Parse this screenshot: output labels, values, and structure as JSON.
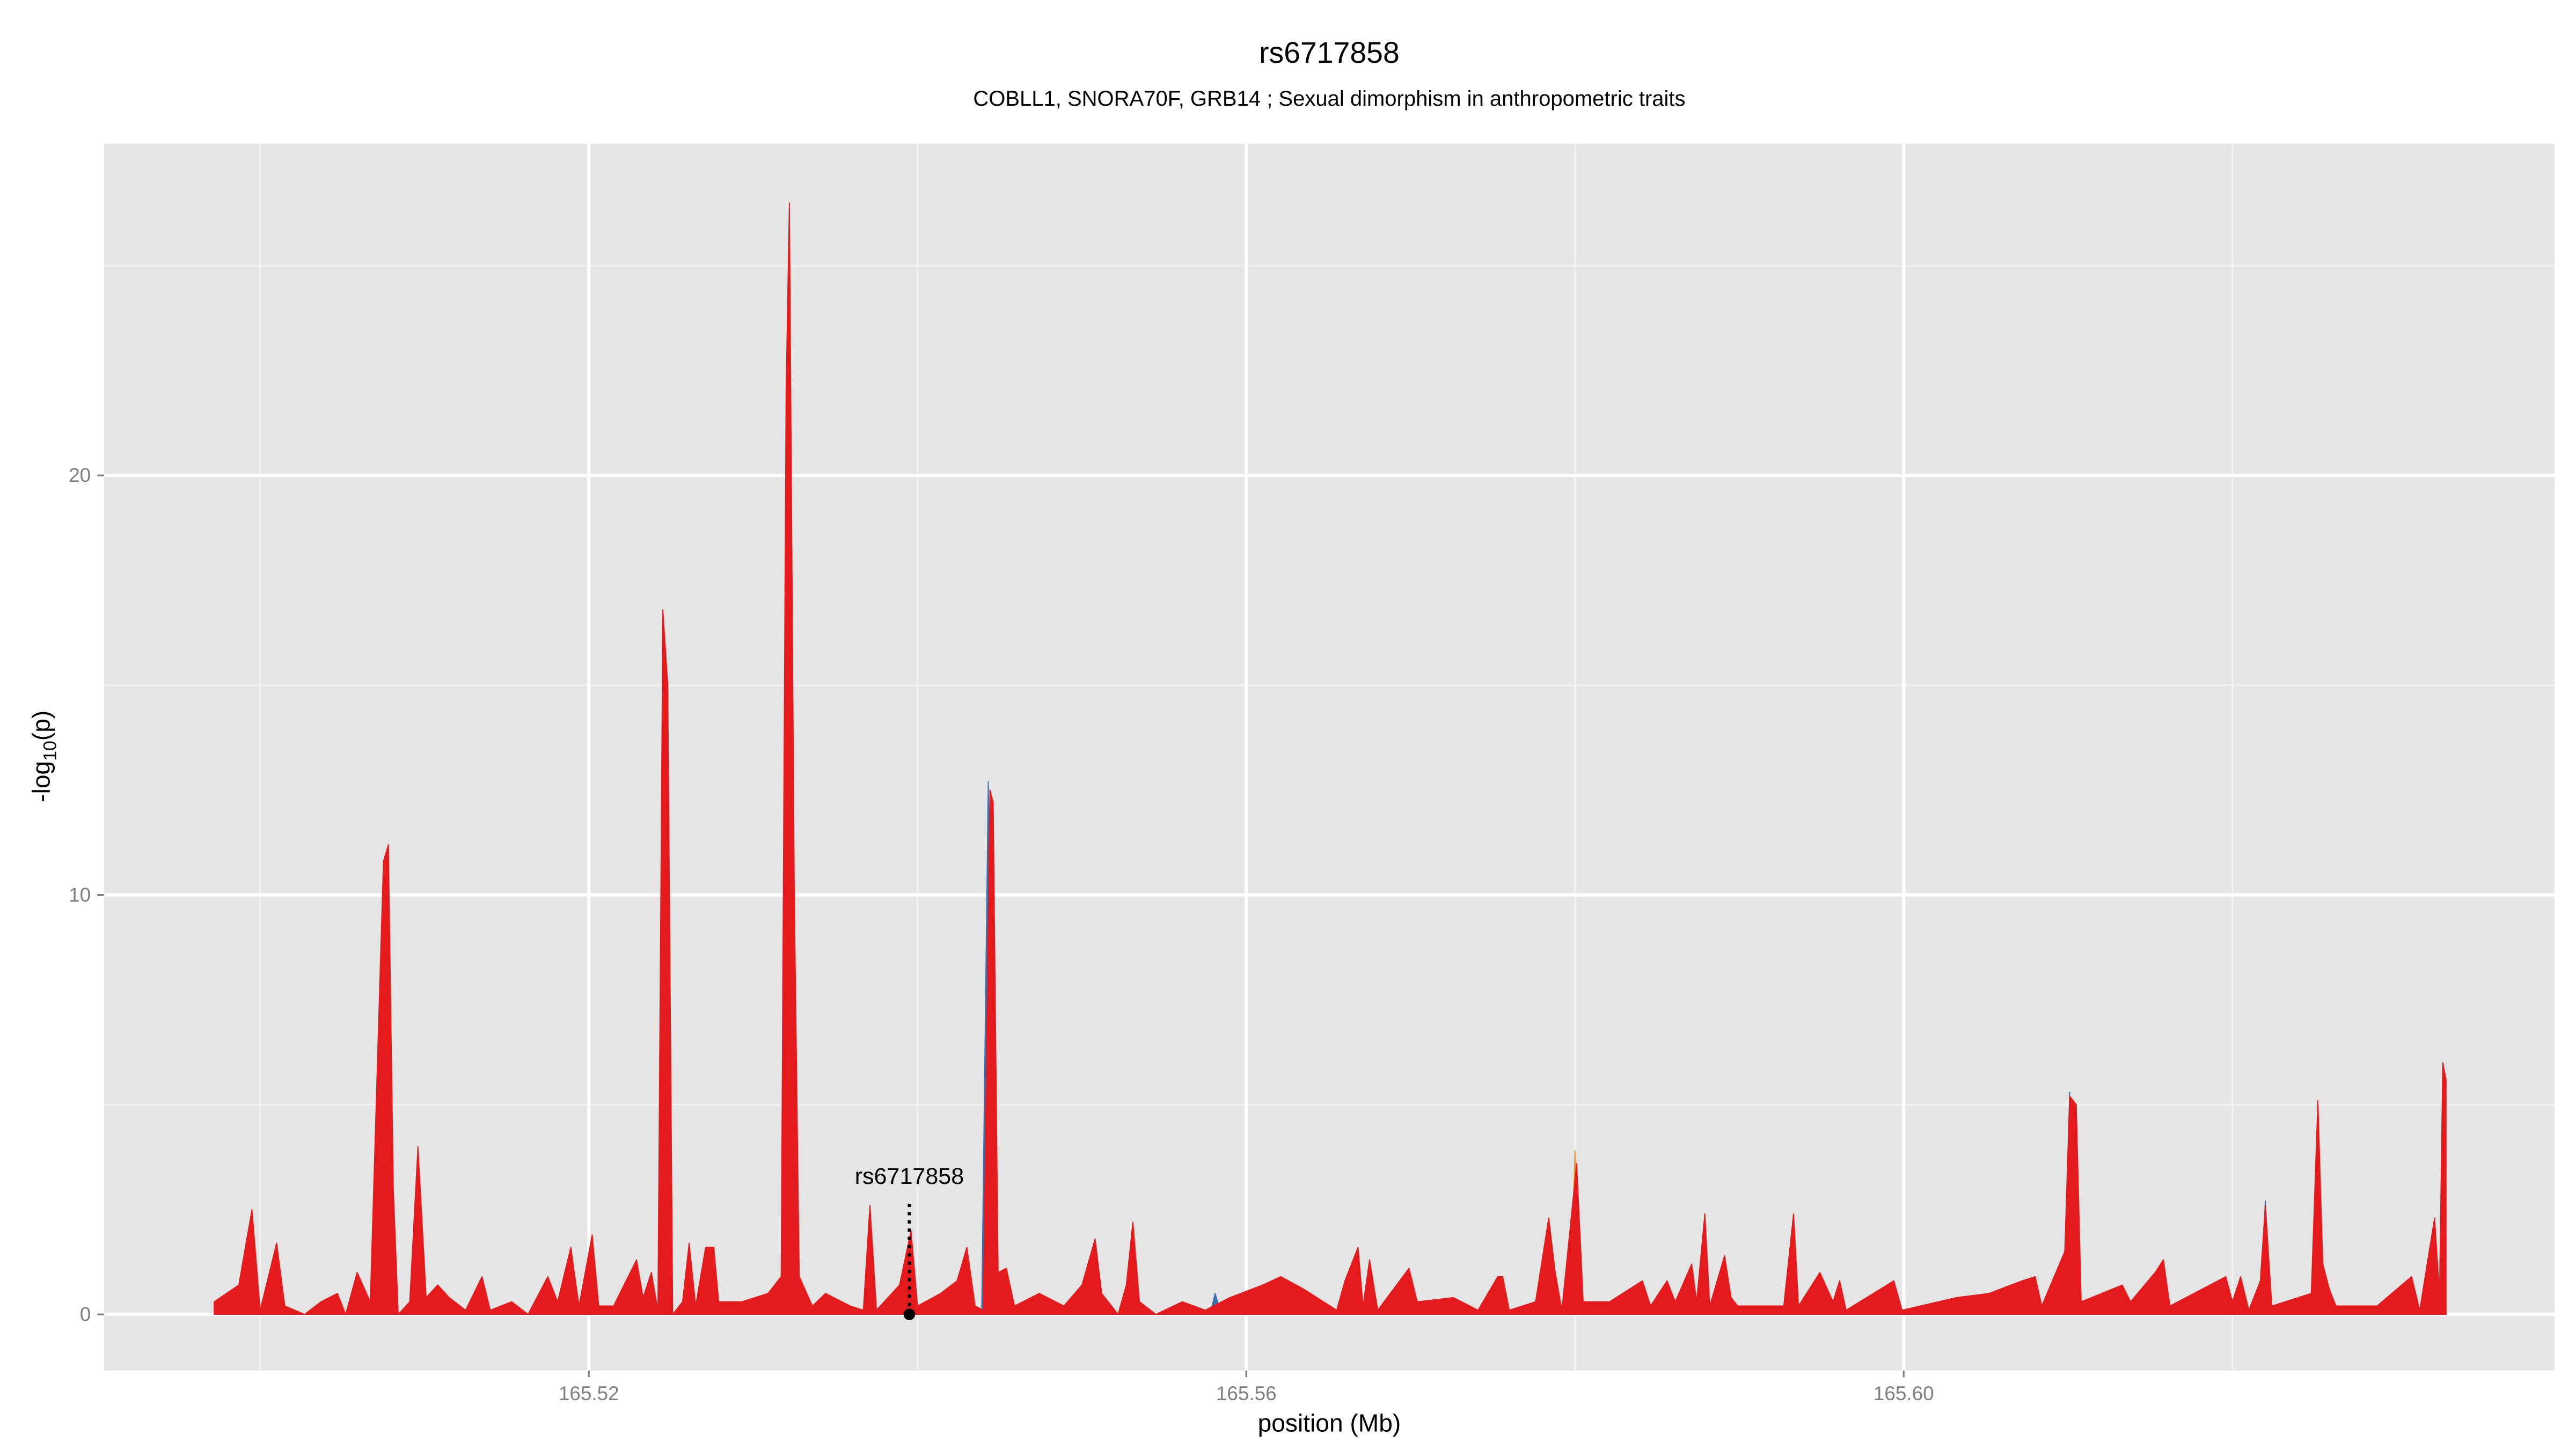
{
  "chart_data": {
    "type": "area",
    "title": "rs6717858",
    "subtitle": "COBLL1, SNORA70F, GRB14 ; Sexual dimorphism in anthropometric traits",
    "xlabel": "position (Mb)",
    "ylabel": [
      "-log",
      "10",
      "(p)"
    ],
    "xlim": [
      165.4905,
      165.6396
    ],
    "ylim": [
      -1.34,
      27.91
    ],
    "xticks": [
      165.52,
      165.56,
      {
        "value": 165.6,
        "label": "165.60"
      }
    ],
    "yticks": [
      0,
      10,
      20
    ],
    "xminor": [
      165.5,
      165.54,
      165.58,
      165.62
    ],
    "yminor": [
      5,
      15,
      25
    ],
    "grid": true,
    "background": "#e5e5e5",
    "series": [
      {
        "color": "#3a6fb0",
        "x": [
          165.5439,
          165.5443,
          165.5448,
          null,
          165.5578,
          165.5581,
          165.5585,
          null,
          165.6097,
          165.6101,
          165.6106,
          null,
          165.6217,
          165.622,
          165.6224
        ],
        "values": [
          0,
          12.7,
          0,
          null,
          0,
          0.5,
          0,
          null,
          0,
          5.3,
          0,
          null,
          0,
          2.7,
          0
        ]
      },
      {
        "color": "#f6921e",
        "x": [
          165.5797,
          165.58,
          165.5804,
          null,
          165.5316,
          165.532,
          165.5324
        ],
        "values": [
          0,
          3.9,
          0,
          null,
          0,
          1.0,
          0
        ]
      },
      {
        "color": "#e41a1c",
        "x": [
          165.4972,
          165.4987,
          165.4995,
          165.5,
          165.501,
          165.5015,
          165.5027,
          165.5037,
          165.5047,
          165.5052,
          165.5059,
          165.5067,
          165.5075,
          165.5078,
          165.5081,
          165.5084,
          165.5091,
          165.5096,
          165.5101,
          165.5108,
          165.5115,
          165.5125,
          165.5135,
          165.514,
          165.5153,
          165.5163,
          165.5175,
          165.5181,
          165.5189,
          165.5194,
          165.5202,
          165.5206,
          165.5215,
          165.5229,
          165.5233,
          165.5238,
          165.5242,
          165.5245,
          165.5248,
          165.5251,
          165.5257,
          165.5261,
          165.5265,
          165.5271,
          165.5276,
          165.5279,
          165.5293,
          165.5309,
          165.5317,
          165.532,
          165.5322,
          165.5325,
          165.5328,
          165.5336,
          165.5344,
          165.5359,
          165.5367,
          165.5371,
          165.5375,
          165.5389,
          165.5396,
          165.54,
          165.5414,
          165.5424,
          165.543,
          165.5435,
          165.544,
          165.5444,
          165.5446,
          165.5449,
          165.5454,
          165.5459,
          165.5474,
          165.5489,
          165.55,
          165.5508,
          165.5512,
          165.5522,
          165.5527,
          165.5531,
          165.5535,
          165.5545,
          165.5561,
          165.5575,
          165.559,
          165.561,
          165.5621,
          165.5635,
          165.5655,
          165.566,
          165.5668,
          165.5671,
          165.5675,
          165.568,
          165.5699,
          165.5704,
          165.5726,
          165.5741,
          165.5753,
          165.5756,
          165.576,
          165.5776,
          165.5784,
          165.5788,
          165.5792,
          165.5801,
          165.5805,
          165.5821,
          165.5841,
          165.5846,
          165.5856,
          165.5861,
          165.5871,
          165.5874,
          165.5879,
          165.5882,
          165.5891,
          165.5895,
          165.5899,
          165.5927,
          165.5933,
          165.5936,
          165.5949,
          165.5957,
          165.5961,
          165.5965,
          165.5994,
          165.5999,
          165.6032,
          165.6052,
          165.6072,
          165.608,
          165.6084,
          165.6098,
          165.6101,
          165.6105,
          165.6108,
          165.6133,
          165.6138,
          165.6153,
          165.6158,
          165.6162,
          165.6196,
          165.62,
          165.6205,
          165.621,
          165.6217,
          165.622,
          165.6224,
          165.6248,
          165.6252,
          165.6255,
          165.6259,
          165.6263,
          165.6288,
          165.6309,
          165.6314,
          165.6323,
          165.6326,
          165.6328,
          165.633
        ],
        "values": [
          0.3,
          0.7,
          2.5,
          0.1,
          1.7,
          0.2,
          0,
          0.3,
          0.5,
          0,
          1,
          0.3,
          10.8,
          11.2,
          3,
          0,
          0.3,
          4,
          0.4,
          0.7,
          0.4,
          0.1,
          0.9,
          0.1,
          0.3,
          0,
          0.9,
          0.3,
          1.6,
          0.2,
          1.9,
          0.2,
          0.2,
          1.3,
          0.4,
          1,
          0.1,
          16.8,
          15,
          0,
          0.3,
          1.7,
          0.2,
          1.6,
          1.6,
          0.3,
          0.3,
          0.5,
          0.9,
          22,
          26.5,
          10,
          0.9,
          0.2,
          0.5,
          0.2,
          0.1,
          2.6,
          0.1,
          0.7,
          2,
          0.2,
          0.5,
          0.8,
          1.6,
          0.2,
          0.1,
          12.5,
          12.2,
          1,
          1.1,
          0.2,
          0.5,
          0.2,
          0.7,
          1.8,
          0.5,
          0,
          0.7,
          2.2,
          0.3,
          0,
          0.3,
          0.1,
          0.4,
          0.7,
          0.9,
          0.6,
          0.1,
          0.8,
          1.6,
          0.2,
          1.3,
          0.1,
          1.1,
          0.3,
          0.4,
          0.1,
          0.9,
          0.9,
          0.1,
          0.3,
          2.3,
          1,
          0.1,
          3.6,
          0.3,
          0.3,
          0.8,
          0.2,
          0.8,
          0.3,
          1.2,
          0.3,
          2.4,
          0.2,
          1.4,
          0.4,
          0.2,
          0.2,
          2.4,
          0.2,
          1,
          0.3,
          0.8,
          0.1,
          0.8,
          0.1,
          0.4,
          0.5,
          0.8,
          0.9,
          0.2,
          1.5,
          5.2,
          5,
          0.3,
          0.7,
          0.3,
          1,
          1.3,
          0.2,
          0.9,
          0.3,
          0.9,
          0.1,
          0.8,
          2.6,
          0.2,
          0.5,
          5.1,
          1.2,
          0.6,
          0.2,
          0.2,
          0.9,
          0.1,
          2.3,
          0.5,
          6,
          5.6
        ]
      }
    ],
    "annotation": {
      "text": "rs6717858",
      "x": 165.5395,
      "y": 0
    }
  }
}
